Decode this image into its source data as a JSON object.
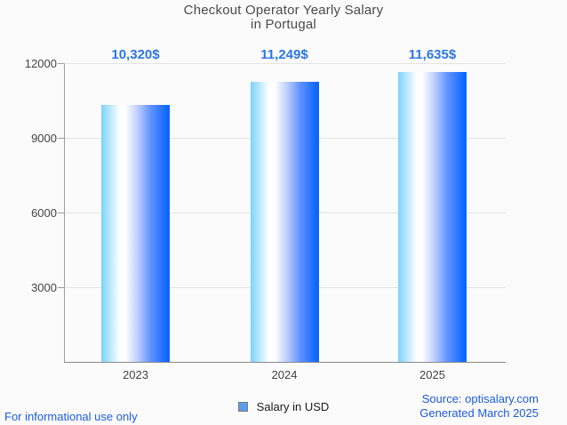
{
  "title": {
    "line1": "Checkout Operator Yearly Salary",
    "line2": "in Portugal"
  },
  "chart_data": {
    "type": "bar",
    "title": "Checkout Operator Yearly Salary in Portugal",
    "categories": [
      "2023",
      "2024",
      "2025"
    ],
    "values": [
      10320,
      11249,
      11635
    ],
    "value_labels": [
      "10,320$",
      "11,249$",
      "11,635$"
    ],
    "series_name": "Salary in USD",
    "xlabel": "",
    "ylabel": "",
    "ylim": [
      0,
      12000
    ],
    "yticks": [
      3000,
      6000,
      9000,
      12000
    ],
    "grid": true,
    "legend_position": "bottom",
    "annotation_color": "#2b76e5",
    "bar_gradient": [
      "#7cd2fb",
      "#ffffff",
      "#0b66fe"
    ]
  },
  "legend": {
    "label": "Salary in USD",
    "marker_color": "#5c9ded"
  },
  "footer": {
    "left": "For informational use only",
    "source": "Source: optisalary.com",
    "generated": "Generated March 2025"
  }
}
